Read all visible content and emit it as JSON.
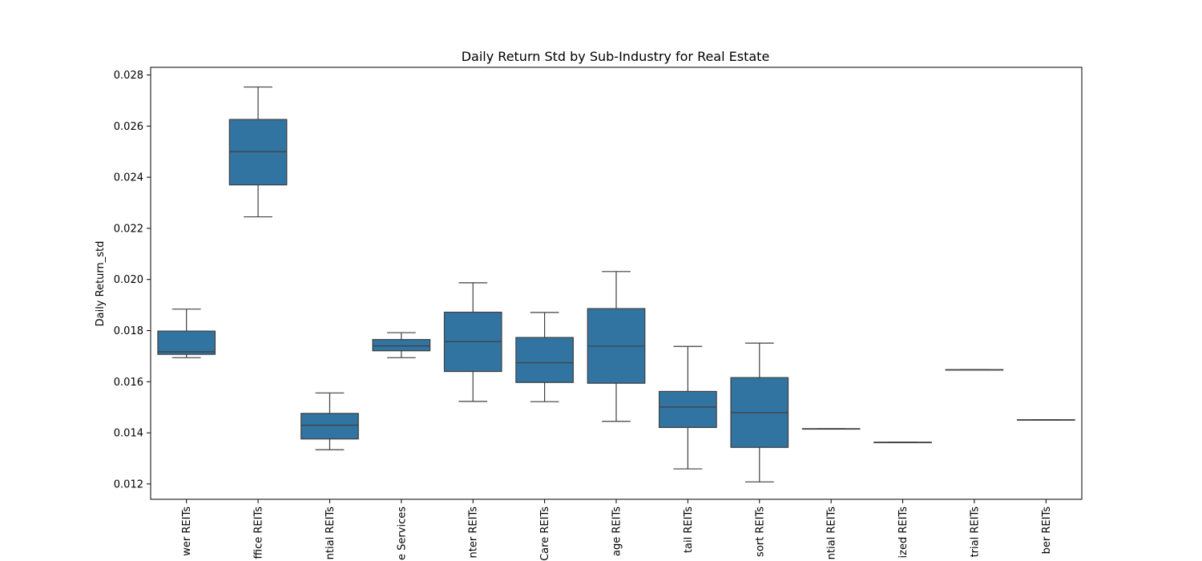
{
  "chart_data": {
    "type": "box",
    "title": "Daily Return Std by Sub-Industry for Real Estate",
    "xlabel": "",
    "ylabel": "Daily Return_std",
    "ylim": [
      0.0114,
      0.0283
    ],
    "y_ticks": [
      "0.012",
      "0.014",
      "0.016",
      "0.018",
      "0.020",
      "0.022",
      "0.024",
      "0.026",
      "0.028"
    ],
    "y_tick_values": [
      0.012,
      0.014,
      0.016,
      0.018,
      0.02,
      0.022,
      0.024,
      0.026,
      0.028
    ],
    "box_color": "#3274a1",
    "categories": [
      "wer REITs",
      "ffice REITs",
      "ntial REITs",
      "e Services",
      "nter REITs",
      "Care REITs",
      "age REITs",
      "tail REITs",
      "sort REITs",
      "ntial REITs",
      "ized REITs",
      "trial REITs",
      "ber REITs"
    ],
    "boxes": [
      {
        "whislo": 0.01694,
        "q1": 0.01707,
        "med": 0.01717,
        "q3": 0.01798,
        "whishi": 0.01884
      },
      {
        "whislo": 0.02245,
        "q1": 0.0237,
        "med": 0.025,
        "q3": 0.02626,
        "whishi": 0.02753
      },
      {
        "whislo": 0.01334,
        "q1": 0.01376,
        "med": 0.0143,
        "q3": 0.01476,
        "whishi": 0.01556
      },
      {
        "whislo": 0.01694,
        "q1": 0.01721,
        "med": 0.0174,
        "q3": 0.01765,
        "whishi": 0.01792
      },
      {
        "whislo": 0.01523,
        "q1": 0.0164,
        "med": 0.01757,
        "q3": 0.01872,
        "whishi": 0.01987
      },
      {
        "whislo": 0.01522,
        "q1": 0.01597,
        "med": 0.01674,
        "q3": 0.01773,
        "whishi": 0.01871
      },
      {
        "whislo": 0.01445,
        "q1": 0.01594,
        "med": 0.01739,
        "q3": 0.01886,
        "whishi": 0.02031
      },
      {
        "whislo": 0.01259,
        "q1": 0.01421,
        "med": 0.01501,
        "q3": 0.01562,
        "whishi": 0.01738
      },
      {
        "whislo": 0.01208,
        "q1": 0.01343,
        "med": 0.01479,
        "q3": 0.01616,
        "whishi": 0.01751
      },
      {
        "whislo": 0.01416,
        "q1": 0.01416,
        "med": 0.01416,
        "q3": 0.01416,
        "whishi": 0.01416
      },
      {
        "whislo": 0.01363,
        "q1": 0.01363,
        "med": 0.01363,
        "q3": 0.01363,
        "whishi": 0.01363
      },
      {
        "whislo": 0.01647,
        "q1": 0.01647,
        "med": 0.01647,
        "q3": 0.01647,
        "whishi": 0.01647
      },
      {
        "whislo": 0.01451,
        "q1": 0.01451,
        "med": 0.01451,
        "q3": 0.01451,
        "whishi": 0.01451
      }
    ],
    "grid": false,
    "legend": "none"
  }
}
